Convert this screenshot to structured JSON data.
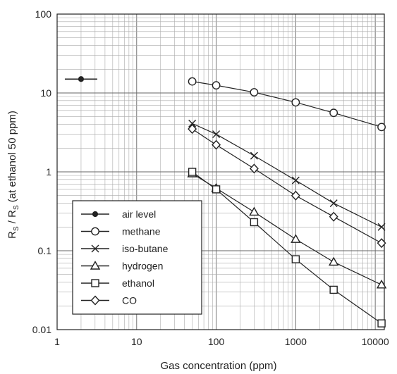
{
  "chart_data": {
    "type": "line",
    "title": "",
    "xlabel": "Gas concentration (ppm)",
    "ylabel": "R_S / R_S (at ethanol 50 ppm)",
    "ylabel_parts": {
      "r1": "R",
      "s1": "S",
      "mid": " / R",
      "s2": "S",
      "tail": " (at ethanol 50 ppm)"
    },
    "x_scale": "log",
    "y_scale": "log",
    "xlim": [
      1,
      13000
    ],
    "ylim": [
      0.01,
      100
    ],
    "x_ticks": [
      {
        "value": 1,
        "label": "1"
      },
      {
        "value": 10,
        "label": "10"
      },
      {
        "value": 100,
        "label": "100"
      },
      {
        "value": 1000,
        "label": "1000"
      },
      {
        "value": 10000,
        "label": "10000"
      }
    ],
    "y_ticks": [
      {
        "value": 0.01,
        "label": "0.01"
      },
      {
        "value": 0.1,
        "label": "0.1"
      },
      {
        "value": 1,
        "label": "1"
      },
      {
        "value": 10,
        "label": "10"
      },
      {
        "value": 100,
        "label": "100"
      }
    ],
    "grid": true,
    "legend_position": "bottom-left",
    "series": [
      {
        "name": "air level",
        "marker": "dot",
        "x": [
          2
        ],
        "y": [
          15
        ]
      },
      {
        "name": "methane",
        "marker": "circle",
        "x": [
          50,
          100,
          300,
          1000,
          3000,
          12000
        ],
        "y": [
          14,
          12.5,
          10.2,
          7.6,
          5.6,
          3.7
        ]
      },
      {
        "name": "iso-butane",
        "marker": "cross",
        "x": [
          50,
          100,
          300,
          1000,
          3000,
          12000
        ],
        "y": [
          4.1,
          3.0,
          1.6,
          0.78,
          0.4,
          0.2
        ]
      },
      {
        "name": "hydrogen",
        "marker": "triangle",
        "x": [
          50,
          100,
          300,
          1000,
          3000,
          12000
        ],
        "y": [
          0.95,
          0.62,
          0.31,
          0.14,
          0.072,
          0.037
        ]
      },
      {
        "name": "ethanol",
        "marker": "square",
        "x": [
          50,
          100,
          300,
          1000,
          3000,
          12000
        ],
        "y": [
          1.0,
          0.6,
          0.23,
          0.078,
          0.032,
          0.012
        ]
      },
      {
        "name": "CO",
        "marker": "diamond",
        "x": [
          50,
          100,
          300,
          1000,
          3000,
          12000
        ],
        "y": [
          3.5,
          2.2,
          1.1,
          0.5,
          0.27,
          0.125
        ]
      }
    ]
  }
}
